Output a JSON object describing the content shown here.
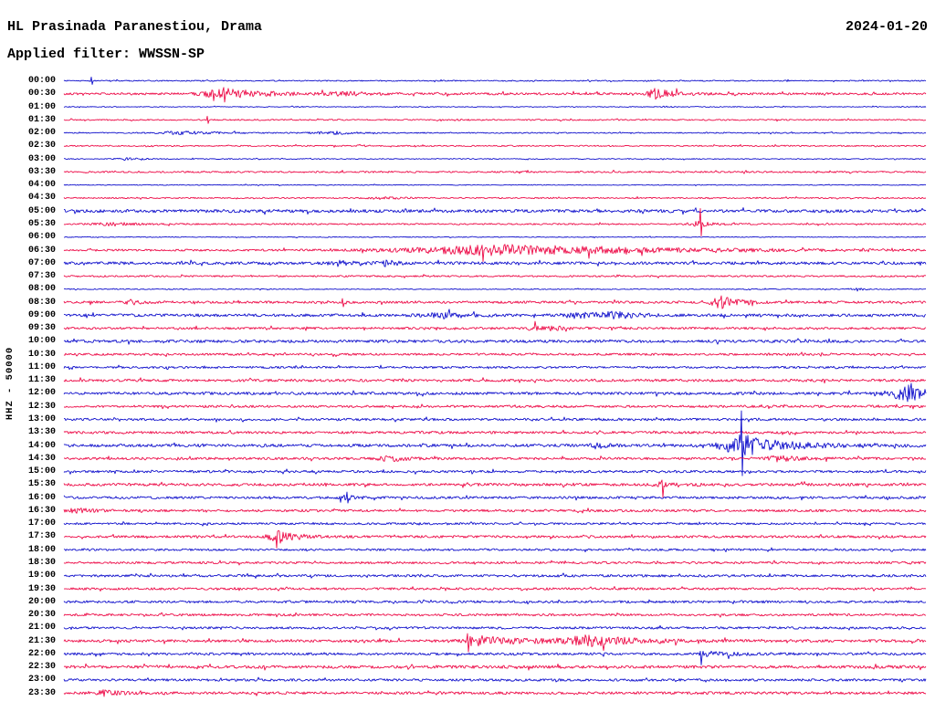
{
  "header": {
    "station": "HL Prasinada Paranestiou, Drama",
    "date": "2024-01-20",
    "filter": "Applied filter: WWSSN-SP"
  },
  "axis": {
    "left_label": "HHZ - 50000"
  },
  "colors": {
    "trace_blue": "#1111cc",
    "trace_red": "#ed0d49",
    "text": "#000000",
    "background": "#ffffff"
  },
  "chart_data": {
    "type": "line",
    "subtype": "helicorder-seismogram",
    "title": "HL Prasinada Paranestiou, Drama",
    "date": "2024-01-20",
    "filter": "WWSSN-SP",
    "channel": "HHZ",
    "scale": 50000,
    "minutes_per_row": 30,
    "legend_position": "none",
    "grid": false,
    "rows": [
      {
        "time": "00:00",
        "color": "blue",
        "noise": 0.6,
        "events": [
          {
            "type": "spike",
            "min": 0.95,
            "up": 4,
            "down": 4
          }
        ]
      },
      {
        "time": "00:30",
        "color": "red",
        "noise": 1.2,
        "events": [
          {
            "type": "burst",
            "min": 5.6,
            "amp": 5.5,
            "attack": 0.5,
            "decay": 1.3
          },
          {
            "type": "spike",
            "min": 5.56,
            "up": 7,
            "down": 9
          },
          {
            "type": "burst",
            "min": 20.56,
            "amp": 5,
            "attack": 0.2,
            "decay": 0.7
          },
          {
            "type": "spike",
            "min": 20.56,
            "up": 6,
            "down": 6
          },
          {
            "type": "burst",
            "min": 9.9,
            "amp": 1.5,
            "attack": 0.5,
            "decay": 0.8
          }
        ]
      },
      {
        "time": "01:00",
        "color": "blue",
        "noise": 0.45,
        "events": [
          {
            "type": "burst",
            "min": 8.0,
            "amp": 1.2,
            "attack": 0.1,
            "decay": 0.15
          },
          {
            "type": "burst",
            "min": 21.0,
            "amp": 1.2,
            "attack": 0.1,
            "decay": 0.15
          }
        ]
      },
      {
        "time": "01:30",
        "color": "red",
        "noise": 0.7,
        "events": [
          {
            "type": "spike",
            "min": 5.0,
            "up": 4,
            "down": 4
          },
          {
            "type": "burst",
            "min": 13.7,
            "amp": 1,
            "attack": 0.1,
            "decay": 0.2
          }
        ]
      },
      {
        "time": "02:00",
        "color": "blue",
        "noise": 0.6,
        "events": [
          {
            "type": "burst",
            "min": 4.3,
            "amp": 1.6,
            "attack": 0.8,
            "decay": 1.0
          },
          {
            "type": "burst",
            "min": 9.5,
            "amp": 1.4,
            "attack": 0.6,
            "decay": 0.8
          }
        ]
      },
      {
        "time": "02:30",
        "color": "red",
        "noise": 0.7,
        "events": [
          {
            "type": "burst",
            "min": 10.3,
            "amp": 1.2,
            "attack": 0.1,
            "decay": 0.2
          }
        ]
      },
      {
        "time": "03:00",
        "color": "blue",
        "noise": 0.5,
        "events": [
          {
            "type": "burst",
            "min": 2.2,
            "amp": 1,
            "attack": 0.3,
            "decay": 0.4
          }
        ]
      },
      {
        "time": "03:30",
        "color": "red",
        "noise": 0.9,
        "events": []
      },
      {
        "time": "04:00",
        "color": "blue",
        "noise": 0.45,
        "events": []
      },
      {
        "time": "04:30",
        "color": "red",
        "noise": 0.7,
        "events": [
          {
            "type": "burst",
            "min": 11.2,
            "amp": 1.3,
            "attack": 0.4,
            "decay": 0.6
          }
        ]
      },
      {
        "time": "05:00",
        "color": "blue",
        "noise": 1.7,
        "events": []
      },
      {
        "time": "05:30",
        "color": "red",
        "noise": 0.8,
        "events": [
          {
            "type": "spike",
            "min": 22.15,
            "up": 17,
            "down": 13
          },
          {
            "type": "burst",
            "min": 22.15,
            "amp": 2.5,
            "attack": 0.3,
            "decay": 0.5
          },
          {
            "type": "burst",
            "min": 1.8,
            "amp": 1.5,
            "attack": 0.5,
            "decay": 0.8
          }
        ]
      },
      {
        "time": "06:00",
        "color": "blue",
        "noise": 0.45,
        "events": []
      },
      {
        "time": "06:30",
        "color": "red",
        "noise": 1.1,
        "events": [
          {
            "type": "burst",
            "min": 15.6,
            "amp": 5.5,
            "attack": 2.3,
            "decay": 4.8
          }
        ]
      },
      {
        "time": "07:00",
        "color": "blue",
        "noise": 1.5,
        "events": [
          {
            "type": "burst",
            "min": 9.53,
            "amp": 2.5,
            "attack": 0.3,
            "decay": 0.5
          },
          {
            "type": "burst",
            "min": 11.28,
            "amp": 2.5,
            "attack": 0.3,
            "decay": 0.5
          }
        ]
      },
      {
        "time": "07:30",
        "color": "red",
        "noise": 0.9,
        "events": []
      },
      {
        "time": "08:00",
        "color": "blue",
        "noise": 0.5,
        "events": [
          {
            "type": "burst",
            "min": 27.6,
            "amp": 1.8,
            "attack": 0.1,
            "decay": 0.2
          }
        ]
      },
      {
        "time": "08:30",
        "color": "red",
        "noise": 1.3,
        "events": [
          {
            "type": "spike",
            "min": 9.7,
            "up": 4,
            "down": 5
          },
          {
            "type": "burst",
            "min": 22.88,
            "amp": 6,
            "attack": 0.25,
            "decay": 0.55
          },
          {
            "type": "spike",
            "min": 22.88,
            "up": 7,
            "down": 7
          },
          {
            "type": "burst",
            "min": 2.5,
            "amp": 2,
            "attack": 0.3,
            "decay": 0.5
          }
        ]
      },
      {
        "time": "09:00",
        "color": "blue",
        "noise": 1.5,
        "events": [
          {
            "type": "burst",
            "min": 13.3,
            "amp": 2.8,
            "attack": 0.5,
            "decay": 0.7
          },
          {
            "type": "burst",
            "min": 17.9,
            "amp": 2.5,
            "attack": 0.4,
            "decay": 0.6
          },
          {
            "type": "burst",
            "min": 19.3,
            "amp": 3,
            "attack": 0.5,
            "decay": 0.8
          }
        ]
      },
      {
        "time": "09:30",
        "color": "red",
        "noise": 1.2,
        "events": [
          {
            "type": "burst",
            "min": 16.7,
            "amp": 3.2,
            "attack": 0.4,
            "decay": 0.7
          }
        ]
      },
      {
        "time": "10:00",
        "color": "blue",
        "noise": 1.5,
        "events": []
      },
      {
        "time": "10:30",
        "color": "red",
        "noise": 1.2,
        "events": []
      },
      {
        "time": "11:00",
        "color": "blue",
        "noise": 1.1,
        "events": []
      },
      {
        "time": "11:30",
        "color": "red",
        "noise": 1.4,
        "events": []
      },
      {
        "time": "12:00",
        "color": "blue",
        "noise": 1.5,
        "events": [
          {
            "type": "burst",
            "min": 29.5,
            "amp": 8,
            "attack": 0.5,
            "decay": 0.5
          },
          {
            "type": "spike",
            "min": 29.5,
            "up": 11,
            "down": 6
          }
        ]
      },
      {
        "time": "12:30",
        "color": "red",
        "noise": 1.3,
        "events": []
      },
      {
        "time": "13:00",
        "color": "blue",
        "noise": 1.3,
        "events": []
      },
      {
        "time": "13:30",
        "color": "red",
        "noise": 1.3,
        "events": []
      },
      {
        "time": "14:00",
        "color": "blue",
        "noise": 1.6,
        "events": [
          {
            "type": "burst",
            "min": 23.58,
            "amp": 12,
            "attack": 0.45,
            "decay": 1.3
          },
          {
            "type": "spike",
            "min": 23.58,
            "up": 38,
            "down": 33
          },
          {
            "type": "burst",
            "min": 18.6,
            "amp": 3,
            "attack": 0.15,
            "decay": 0.3
          }
        ]
      },
      {
        "time": "14:30",
        "color": "red",
        "noise": 1.3,
        "events": [
          {
            "type": "burst",
            "min": 11.4,
            "amp": 3,
            "attack": 0.3,
            "decay": 0.5
          },
          {
            "type": "burst",
            "min": 24.9,
            "amp": 2.5,
            "attack": 0.5,
            "decay": 0.8
          }
        ]
      },
      {
        "time": "15:00",
        "color": "blue",
        "noise": 1.3,
        "events": []
      },
      {
        "time": "15:30",
        "color": "red",
        "noise": 1.5,
        "events": [
          {
            "type": "spike",
            "min": 20.8,
            "up": 5,
            "down": 14
          },
          {
            "type": "burst",
            "min": 20.8,
            "amp": 2,
            "attack": 0.2,
            "decay": 0.4
          }
        ]
      },
      {
        "time": "16:00",
        "color": "blue",
        "noise": 1.3,
        "events": [
          {
            "type": "spike",
            "min": 9.85,
            "up": 6,
            "down": 6
          },
          {
            "type": "burst",
            "min": 9.85,
            "amp": 2,
            "attack": 0.2,
            "decay": 0.4
          }
        ]
      },
      {
        "time": "16:30",
        "color": "red",
        "noise": 1.3,
        "events": [
          {
            "type": "burst",
            "min": 0.5,
            "amp": 2,
            "attack": 0.3,
            "decay": 0.5
          }
        ]
      },
      {
        "time": "17:00",
        "color": "blue",
        "noise": 1.1,
        "events": []
      },
      {
        "time": "17:30",
        "color": "red",
        "noise": 1.3,
        "events": [
          {
            "type": "burst",
            "min": 7.56,
            "amp": 6,
            "attack": 0.3,
            "decay": 0.6
          },
          {
            "type": "spike",
            "min": 7.5,
            "up": 6,
            "down": 7
          }
        ]
      },
      {
        "time": "18:00",
        "color": "blue",
        "noise": 1.1,
        "events": []
      },
      {
        "time": "18:30",
        "color": "red",
        "noise": 1.2,
        "events": []
      },
      {
        "time": "19:00",
        "color": "blue",
        "noise": 1.3,
        "events": []
      },
      {
        "time": "19:30",
        "color": "red",
        "noise": 1.2,
        "events": []
      },
      {
        "time": "20:00",
        "color": "blue",
        "noise": 1.3,
        "events": []
      },
      {
        "time": "20:30",
        "color": "red",
        "noise": 1.2,
        "events": []
      },
      {
        "time": "21:00",
        "color": "blue",
        "noise": 1.2,
        "events": []
      },
      {
        "time": "21:30",
        "color": "red",
        "noise": 1.5,
        "events": [
          {
            "type": "spike",
            "min": 14.05,
            "up": 8,
            "down": 12
          },
          {
            "type": "burst",
            "min": 14.2,
            "amp": 5.5,
            "attack": 0.2,
            "decay": 1.6
          },
          {
            "type": "burst",
            "min": 18.4,
            "amp": 5,
            "attack": 0.7,
            "decay": 1.4
          }
        ]
      },
      {
        "time": "22:00",
        "color": "blue",
        "noise": 1.3,
        "events": [
          {
            "type": "spike",
            "min": 22.15,
            "up": 3,
            "down": 12
          },
          {
            "type": "burst",
            "min": 22.4,
            "amp": 2.5,
            "attack": 0.2,
            "decay": 0.9
          }
        ]
      },
      {
        "time": "22:30",
        "color": "red",
        "noise": 1.6,
        "events": []
      },
      {
        "time": "23:00",
        "color": "blue",
        "noise": 1.3,
        "events": []
      },
      {
        "time": "23:30",
        "color": "red",
        "noise": 1.4,
        "events": [
          {
            "type": "burst",
            "min": 1.43,
            "amp": 2.5,
            "attack": 0.3,
            "decay": 0.6
          }
        ]
      }
    ]
  }
}
